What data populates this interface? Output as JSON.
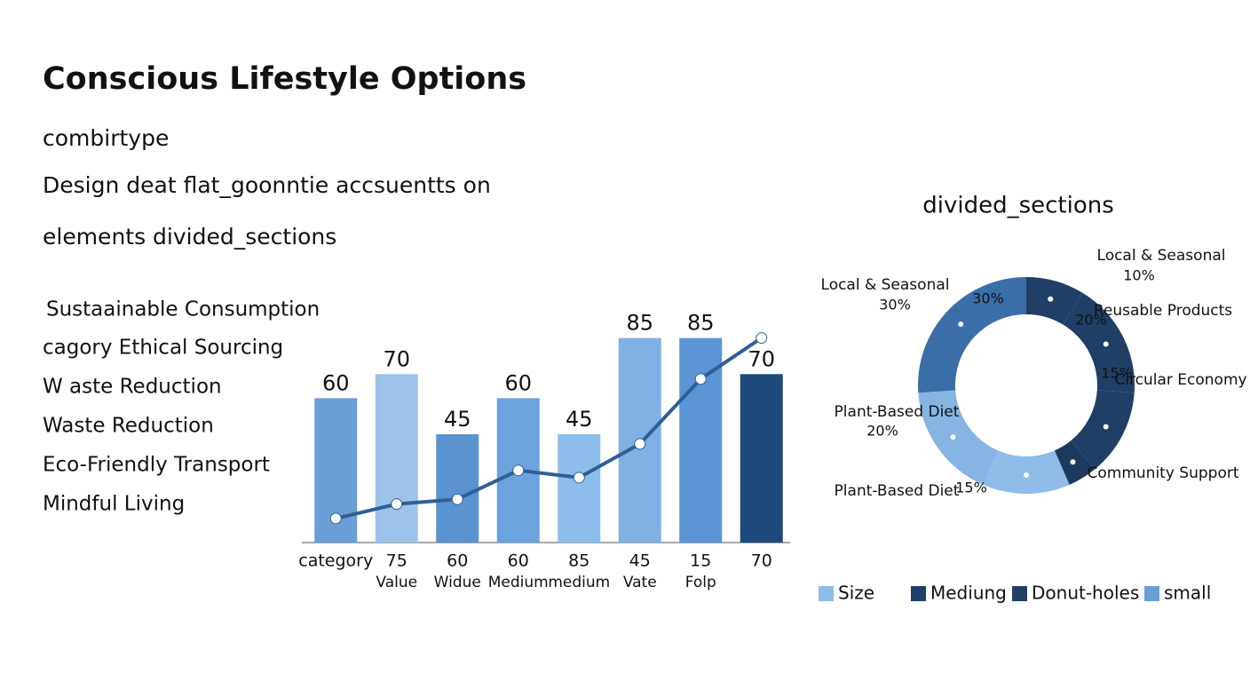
{
  "header": {
    "title": "Conscious Lifestyle Options",
    "lines": [
      "combirtype",
      "Design deat flat_goonntie accsuentts on",
      "elements divided_sections"
    ]
  },
  "list": [
    "Sustaainable Consumption",
    "cagory Ethical Sourcing",
    "W aste Reduction",
    "Waste Reduction",
    "Eco-Friendly Transport",
    "Mindful Living"
  ],
  "chart_data": [
    {
      "type": "bar",
      "categories": [
        "category",
        "75",
        "60",
        "60",
        "85",
        "45",
        "15",
        "70"
      ],
      "sublabels": [
        null,
        "Value",
        "Widue",
        "Medium",
        "medium",
        "Vate",
        "Folp",
        null
      ],
      "values": [
        60,
        70,
        45,
        60,
        45,
        85,
        85,
        70
      ],
      "colors": [
        "#6a9fd8",
        "#9cc3ea",
        "#5b93d1",
        "#6aa3dd",
        "#8dbdeb",
        "#7fb1e4",
        "#5b95d6",
        "#1e4a7c"
      ],
      "line_values": [
        10,
        16,
        18,
        30,
        27,
        41,
        68,
        85
      ],
      "line_color": "#2f5f96",
      "ylim": [
        0,
        100
      ]
    },
    {
      "type": "donut",
      "title": "divided_sections",
      "labels": [
        "Local & Seasonal",
        "Reusable Products",
        "Circular Economy",
        "Community Support",
        "Plant-Based Diet",
        "Plant-Based Diet",
        "Local & Seasonal"
      ],
      "values": [
        10,
        20,
        15,
        5,
        15,
        20,
        30
      ],
      "value_labels": [
        "10%",
        "20%",
        "15%",
        null,
        "15%",
        "20%",
        "30%"
      ],
      "colors": [
        "#1f3f66",
        "#1f3f66",
        "#1f3f66",
        "#1c3a5e",
        "#8fbbe8",
        "#86b4e3",
        "#3a6ea8"
      ],
      "legend": [
        {
          "name": "Size",
          "color": "#8fbbe8"
        },
        {
          "name": "Mediung",
          "color": "#1f3f66"
        },
        {
          "name": "Donut-holes",
          "color": "#1f3f66"
        },
        {
          "name": "small",
          "color": "#6a9fd8"
        }
      ]
    }
  ]
}
